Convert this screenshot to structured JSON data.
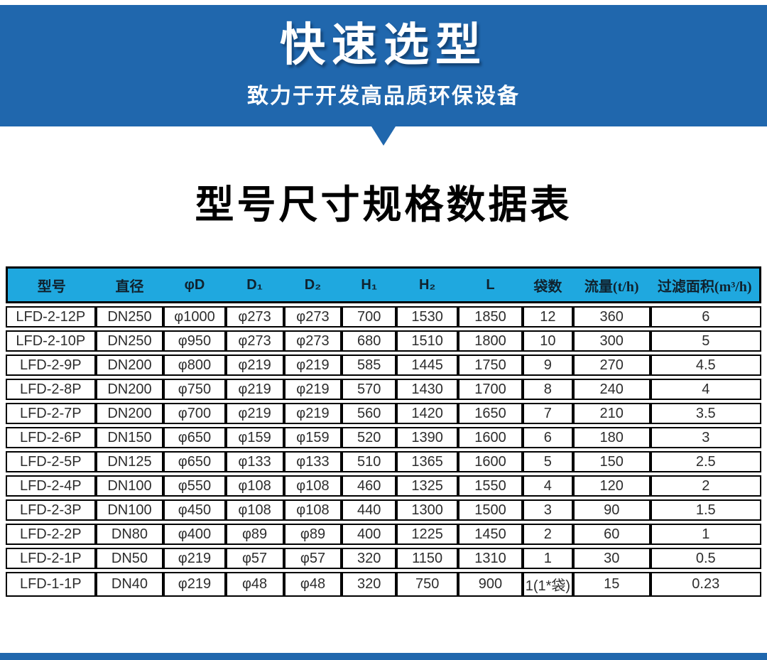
{
  "banner": {
    "title": "快速选型",
    "subtitle": "致力于开发高品质环保设备",
    "bg_color": "#2067ad",
    "text_color": "#ffffff"
  },
  "section": {
    "heading": "型号尺寸规格数据表"
  },
  "table": {
    "header_bg": "#1fa8df",
    "header_text_color": "#10222e",
    "border_color": "#000000",
    "columns": [
      {
        "label": "型号"
      },
      {
        "label": "直径"
      },
      {
        "label": "φD"
      },
      {
        "label": "D₁"
      },
      {
        "label": "D₂"
      },
      {
        "label": "H₁"
      },
      {
        "label": "H₂"
      },
      {
        "label": "L"
      },
      {
        "label": "袋数"
      },
      {
        "label": "流量",
        "unit": "(t/h)"
      },
      {
        "label": "过滤面积",
        "unit": "(m³/h)"
      }
    ],
    "rows": [
      [
        "LFD-2-12P",
        "DN250",
        "φ1000",
        "φ273",
        "φ273",
        "700",
        "1530",
        "1850",
        "12",
        "360",
        "6"
      ],
      [
        "LFD-2-10P",
        "DN250",
        "φ950",
        "φ273",
        "φ273",
        "680",
        "1510",
        "1800",
        "10",
        "300",
        "5"
      ],
      [
        "LFD-2-9P",
        "DN200",
        "φ800",
        "φ219",
        "φ219",
        "585",
        "1445",
        "1750",
        "9",
        "270",
        "4.5"
      ],
      [
        "LFD-2-8P",
        "DN200",
        "φ750",
        "φ219",
        "φ219",
        "570",
        "1430",
        "1700",
        "8",
        "240",
        "4"
      ],
      [
        "LFD-2-7P",
        "DN200",
        "φ700",
        "φ219",
        "φ219",
        "560",
        "1420",
        "1650",
        "7",
        "210",
        "3.5"
      ],
      [
        "LFD-2-6P",
        "DN150",
        "φ650",
        "φ159",
        "φ159",
        "520",
        "1390",
        "1600",
        "6",
        "180",
        "3"
      ],
      [
        "LFD-2-5P",
        "DN125",
        "φ650",
        "φ133",
        "φ133",
        "510",
        "1365",
        "1600",
        "5",
        "150",
        "2.5"
      ],
      [
        "LFD-2-4P",
        "DN100",
        "φ550",
        "φ108",
        "φ108",
        "460",
        "1325",
        "1550",
        "4",
        "120",
        "2"
      ],
      [
        "LFD-2-3P",
        "DN100",
        "φ450",
        "φ108",
        "φ108",
        "440",
        "1300",
        "1500",
        "3",
        "90",
        "1.5"
      ],
      [
        "LFD-2-2P",
        "DN80",
        "φ400",
        "φ89",
        "φ89",
        "400",
        "1225",
        "1450",
        "2",
        "60",
        "1"
      ],
      [
        "LFD-2-1P",
        "DN50",
        "φ219",
        "φ57",
        "φ57",
        "320",
        "1150",
        "1310",
        "1",
        "30",
        "0.5"
      ],
      [
        "LFD-1-1P",
        "DN40",
        "φ219",
        "φ48",
        "φ48",
        "320",
        "750",
        "900",
        "1(1*袋)",
        "15",
        "0.23"
      ]
    ]
  },
  "footer": {
    "bar_color": "#2067ad"
  }
}
